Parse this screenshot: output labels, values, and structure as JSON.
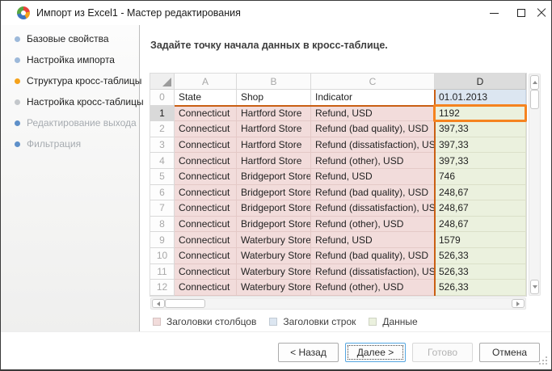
{
  "window": {
    "title": "Импорт из Excel1 - Мастер редактирования"
  },
  "sidebar": {
    "items": [
      {
        "label": "Базовые свойства",
        "bullet": "#9db9da",
        "ui_state": "done"
      },
      {
        "label": "Настройка импорта",
        "bullet": "#9db9da",
        "ui_state": "done"
      },
      {
        "label": "Структура кросс-таблицы",
        "bullet": "#f5a21b",
        "ui_state": "current"
      },
      {
        "label": "Настройка кросс-таблицы",
        "bullet": "#c3c7cb",
        "ui_state": "pending"
      },
      {
        "label": "Редактирование выхода",
        "bullet": "#5e90c9",
        "ui_state": "disabled"
      },
      {
        "label": "Фильтрация",
        "bullet": "#5e90c9",
        "ui_state": "disabled"
      }
    ]
  },
  "main": {
    "instruction": "Задайте точку начала данных в кросс-таблице."
  },
  "table": {
    "column_letters": [
      {
        "label": "A"
      },
      {
        "label": "B"
      },
      {
        "label": "C"
      },
      {
        "label": "D",
        "selected": true
      }
    ],
    "header_row": {
      "index": "0",
      "cells": [
        "State",
        "Shop",
        "Indicator",
        "01.01.2013"
      ]
    },
    "selected_cell": {
      "row": "1",
      "column": "D",
      "value": "1192"
    },
    "rows": [
      {
        "index": "1",
        "region": "Connecticut",
        "shop": "Hartford Store",
        "indicator": "Refund, USD",
        "value": "1192",
        "selected": true
      },
      {
        "index": "2",
        "region": "Connecticut",
        "shop": "Hartford Store",
        "indicator": "Refund (bad quality), USD",
        "value": "397,33"
      },
      {
        "index": "3",
        "region": "Connecticut",
        "shop": "Hartford Store",
        "indicator": "Refund (dissatisfaction), USD",
        "value": "397,33"
      },
      {
        "index": "4",
        "region": "Connecticut",
        "shop": "Hartford Store",
        "indicator": "Refund (other), USD",
        "value": "397,33"
      },
      {
        "index": "5",
        "region": "Connecticut",
        "shop": "Bridgeport Store",
        "indicator": "Refund, USD",
        "value": "746"
      },
      {
        "index": "6",
        "region": "Connecticut",
        "shop": "Bridgeport Store",
        "indicator": "Refund (bad quality), USD",
        "value": "248,67"
      },
      {
        "index": "7",
        "region": "Connecticut",
        "shop": "Bridgeport Store",
        "indicator": "Refund (dissatisfaction), USD",
        "value": "248,67"
      },
      {
        "index": "8",
        "region": "Connecticut",
        "shop": "Bridgeport Store",
        "indicator": "Refund (other), USD",
        "value": "248,67"
      },
      {
        "index": "9",
        "region": "Connecticut",
        "shop": "Waterbury Store",
        "indicator": "Refund, USD",
        "value": "1579"
      },
      {
        "index": "10",
        "region": "Connecticut",
        "shop": "Waterbury Store",
        "indicator": "Refund (bad quality), USD",
        "value": "526,33"
      },
      {
        "index": "11",
        "region": "Connecticut",
        "shop": "Waterbury Store",
        "indicator": "Refund (dissatisfaction), USD",
        "value": "526,33"
      },
      {
        "index": "12",
        "region": "Connecticut",
        "shop": "Waterbury Store",
        "indicator": "Refund (other), USD",
        "value": "526,33"
      }
    ]
  },
  "legend": {
    "items": [
      {
        "label": "Заголовки столбцов",
        "color": "#f2dcdb"
      },
      {
        "label": "Заголовки строк",
        "color": "#dce6f1"
      },
      {
        "label": "Данные",
        "color": "#ebf1de"
      }
    ]
  },
  "footer": {
    "buttons": [
      {
        "label": "< Назад",
        "ui_state": "normal"
      },
      {
        "label": "Далее >",
        "ui_state": "focused"
      },
      {
        "label": "Готово",
        "ui_state": "disabled"
      },
      {
        "label": "Отмена",
        "ui_state": "normal"
      }
    ]
  },
  "colors": {
    "selection_border": "#f5831f",
    "region_lines": "#c95f14",
    "current_step_bullet": "#f5a21b",
    "column_headers_fill": "#f2dcdb",
    "row_headers_fill": "#dce6f1",
    "data_fill": "#ebf1de"
  }
}
